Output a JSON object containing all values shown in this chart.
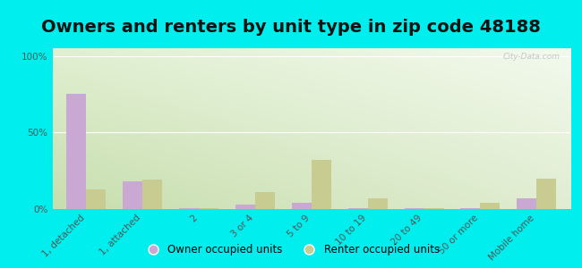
{
  "title": "Owners and renters by unit type in zip code 48188",
  "categories": [
    "1, detached",
    "1, attached",
    "2",
    "3 or 4",
    "5 to 9",
    "10 to 19",
    "20 to 49",
    "50 or more",
    "Mobile home"
  ],
  "owner_values": [
    75,
    18,
    0.3,
    3,
    4,
    0.5,
    0.3,
    0.3,
    7
  ],
  "renter_values": [
    13,
    19,
    0.3,
    11,
    32,
    7,
    0.3,
    4,
    20
  ],
  "owner_color": "#c9a8d4",
  "renter_color": "#c8cc90",
  "background_outer": "#00eeee",
  "ylabel_ticks": [
    "0%",
    "50%",
    "100%"
  ],
  "ytick_vals": [
    0,
    50,
    100
  ],
  "ylim": [
    0,
    105
  ],
  "legend_owner": "Owner occupied units",
  "legend_renter": "Renter occupied units",
  "bar_width": 0.35,
  "title_fontsize": 14,
  "tick_fontsize": 7.5,
  "watermark": "City-Data.com"
}
